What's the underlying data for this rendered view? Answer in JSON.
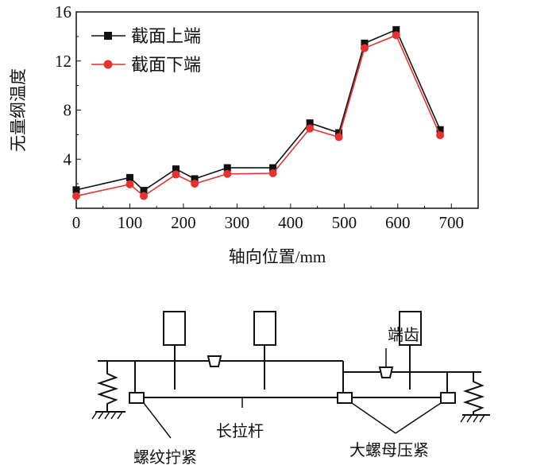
{
  "chart_data": {
    "type": "line",
    "xlabel": "轴向位置/mm",
    "ylabel": "无量纲温度",
    "xlim": [
      0,
      750
    ],
    "ylim": [
      0,
      16
    ],
    "xticks": [
      0,
      100,
      200,
      300,
      400,
      500,
      600,
      700
    ],
    "yticks": [
      4,
      8,
      12,
      16
    ],
    "grid": false,
    "legend_position": "top-left",
    "x": [
      0,
      100,
      126,
      186,
      221,
      282,
      367,
      436,
      490,
      538,
      597,
      679
    ],
    "series": [
      {
        "name": "截面上端",
        "color": "#111111",
        "marker": "square",
        "values": [
          1.5,
          2.5,
          1.45,
          3.2,
          2.4,
          3.3,
          3.3,
          6.95,
          6.15,
          13.45,
          14.55,
          6.4
        ]
      },
      {
        "name": "截面下端",
        "color": "#e8312f",
        "marker": "circle",
        "values": [
          1.0,
          1.95,
          1.0,
          2.75,
          2.0,
          2.8,
          2.85,
          6.5,
          5.8,
          13.05,
          14.1,
          5.95
        ]
      }
    ]
  },
  "diagram": {
    "label_end_tooth": "端齿",
    "label_long_rod": "长拉杆",
    "label_thread": "螺纹拧紧",
    "label_nut": "大螺母压紧"
  }
}
